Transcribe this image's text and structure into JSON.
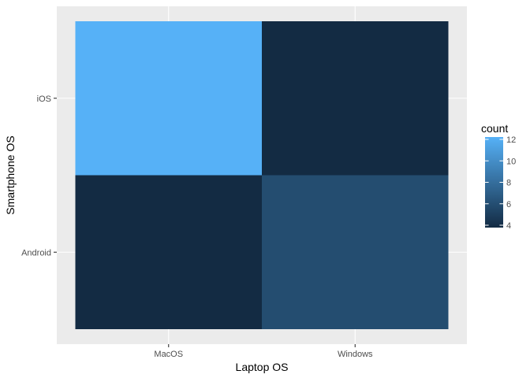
{
  "chart_data": {
    "type": "heatmap",
    "title": "",
    "xlabel": "Laptop OS",
    "ylabel": "Smartphone OS",
    "x_categories": [
      "MacOS",
      "Windows"
    ],
    "y_categories": [
      "Android",
      "iOS"
    ],
    "cells": [
      {
        "x": "MacOS",
        "y": "iOS",
        "value": 12
      },
      {
        "x": "Windows",
        "y": "iOS",
        "value": 4
      },
      {
        "x": "MacOS",
        "y": "Android",
        "value": 4
      },
      {
        "x": "Windows",
        "y": "Android",
        "value": 6
      }
    ],
    "legend": {
      "title": "count",
      "ticks": [
        4,
        6,
        8,
        10,
        12
      ],
      "range": [
        4,
        12
      ],
      "placement": "right"
    },
    "color_scale": {
      "low": "#132b43",
      "high": "#56b1f7"
    },
    "grid": true,
    "panel_background": "#ebebeb"
  }
}
